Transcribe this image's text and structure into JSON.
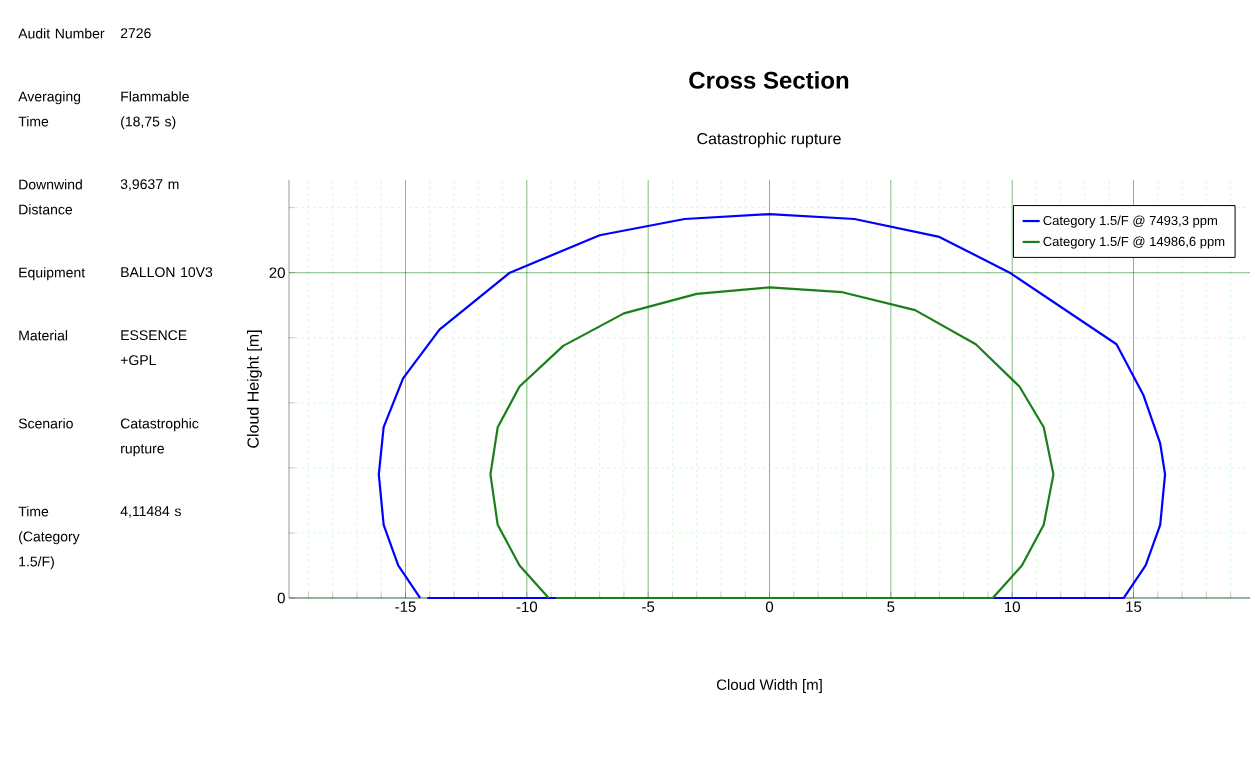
{
  "chart_data": {
    "type": "line",
    "title": "Cross Section",
    "subtitle": "Catastrophic rupture",
    "xlabel": "Cloud Width [m]",
    "ylabel": "Cloud Height [m]",
    "xlim": [
      -19.8,
      19.8
    ],
    "ylim": [
      0,
      25.7
    ],
    "xticks": [
      {
        "value": -19,
        "label": null
      },
      {
        "value": -18,
        "label": null
      },
      {
        "value": -17,
        "label": null
      },
      {
        "value": -16,
        "label": null
      },
      -15,
      {
        "value": -14,
        "label": null
      },
      {
        "value": -13,
        "label": null
      },
      {
        "value": -12,
        "label": null
      },
      {
        "value": -11,
        "label": null
      },
      -10,
      {
        "value": -9,
        "label": null
      },
      {
        "value": -8,
        "label": null
      },
      {
        "value": -7,
        "label": null
      },
      {
        "value": -6,
        "label": null
      },
      -5,
      {
        "value": -4,
        "label": null
      },
      {
        "value": -3,
        "label": null
      },
      {
        "value": -2,
        "label": null
      },
      {
        "value": -1,
        "label": null
      },
      0,
      {
        "value": 1,
        "label": null
      },
      {
        "value": 2,
        "label": null
      },
      {
        "value": 3,
        "label": null
      },
      {
        "value": 4,
        "label": null
      },
      5,
      {
        "value": 6,
        "label": null
      },
      {
        "value": 7,
        "label": null
      },
      {
        "value": 8,
        "label": null
      },
      {
        "value": 9,
        "label": null
      },
      10,
      {
        "value": 11,
        "label": null
      },
      {
        "value": 12,
        "label": null
      },
      {
        "value": 13,
        "label": null
      },
      {
        "value": 14,
        "label": null
      },
      15,
      {
        "value": 16,
        "label": null
      },
      {
        "value": 17,
        "label": null
      },
      {
        "value": 18,
        "label": null
      },
      {
        "value": 19,
        "label": null
      }
    ],
    "yticks": [
      0,
      {
        "value": 4,
        "label": null
      },
      {
        "value": 8,
        "label": null
      },
      {
        "value": 12,
        "label": null
      },
      {
        "value": 16,
        "label": null
      },
      20,
      {
        "value": 24,
        "label": null
      }
    ],
    "grid": true,
    "legend": "top right",
    "marker": "none",
    "line_style": "solid",
    "series": [
      {
        "name": "Category 1.5/F @ 7493,3 ppm",
        "color": "#0000ff",
        "x": [
          -14.4,
          -15.3,
          -15.9,
          -16.1,
          -15.9,
          -15.1,
          -13.6,
          -10.7,
          -7,
          -3.5,
          0,
          3.5,
          7,
          9.9,
          14.3,
          15.4,
          16.1,
          16.3,
          16.1,
          15.5,
          14.6,
          -14.1
        ],
        "values": [
          0,
          2,
          4.5,
          7.6,
          10.5,
          13.5,
          16.5,
          20,
          22.3,
          23.3,
          23.6,
          23.3,
          22.2,
          20,
          15.6,
          12.5,
          9.5,
          7.6,
          4.5,
          2,
          0,
          0
        ]
      },
      {
        "name": "Category 1.5/F @ 14986,6 ppm",
        "color": "#1a7f1a",
        "x": [
          -9.1,
          -10.3,
          -11.2,
          -11.5,
          -11.2,
          -10.3,
          -8.5,
          -6,
          -3,
          0,
          3,
          6,
          8.5,
          10.3,
          11.3,
          11.7,
          11.3,
          10.4,
          9.2,
          -8.8
        ],
        "values": [
          0,
          2,
          4.5,
          7.6,
          10.5,
          13,
          15.5,
          17.5,
          18.7,
          19.1,
          18.8,
          17.7,
          15.6,
          13,
          10.5,
          7.6,
          4.5,
          2,
          0,
          0
        ]
      }
    ],
    "annotations": [
      "Audit Number",
      "2726",
      "Averaging Time",
      "Flammable (18,75 s)",
      "Downwind Distance",
      "3,9637 m",
      "Equipment",
      "BALLON 10V3",
      "Material",
      "ESSENCE +GPL",
      "Scenario",
      "Catastrophic rupture",
      "Time (Category 1.5/F)",
      "4,11484 s"
    ]
  }
}
